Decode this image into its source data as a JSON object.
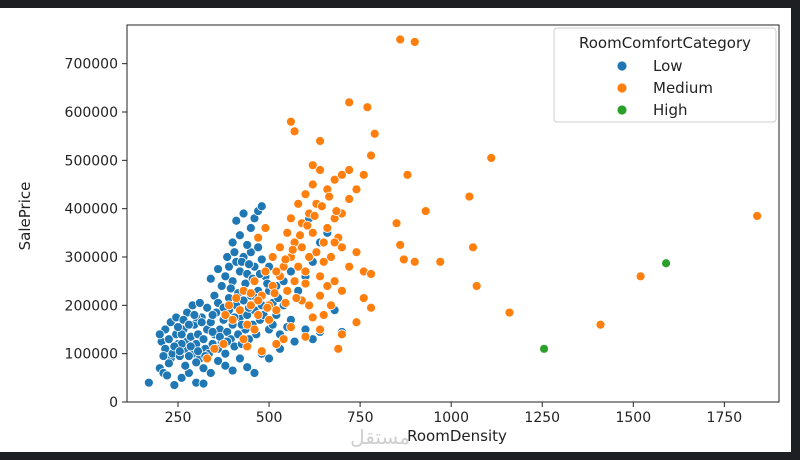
{
  "chart_data": {
    "type": "scatter",
    "title": "",
    "xlabel": "RoomDensity",
    "ylabel": "SalePrice",
    "xlim": [
      110,
      1900
    ],
    "ylim": [
      0,
      780000
    ],
    "xticks": [
      250,
      500,
      750,
      1000,
      1250,
      1500,
      1750
    ],
    "yticks": [
      0,
      100000,
      200000,
      300000,
      400000,
      500000,
      600000,
      700000
    ],
    "grid": false,
    "legend": {
      "title": "RoomComfortCategory",
      "placement": "top-right"
    },
    "series": [
      {
        "name": "Low",
        "color": "#1f77b4",
        "points": [
          [
            170,
            40000
          ],
          [
            200,
            70000
          ],
          [
            210,
            60000
          ],
          [
            220,
            55000
          ],
          [
            230,
            90000
          ],
          [
            240,
            35000
          ],
          [
            260,
            50000
          ],
          [
            280,
            60000
          ],
          [
            300,
            40000
          ],
          [
            320,
            38000
          ],
          [
            205,
            125000
          ],
          [
            215,
            110000
          ],
          [
            225,
            130000
          ],
          [
            235,
            100000
          ],
          [
            245,
            140000
          ],
          [
            250,
            120000
          ],
          [
            255,
            95000
          ],
          [
            265,
            150000
          ],
          [
            270,
            110000
          ],
          [
            275,
            125000
          ],
          [
            285,
            135000
          ],
          [
            290,
            100000
          ],
          [
            295,
            160000
          ],
          [
            300,
            120000
          ],
          [
            305,
            140000
          ],
          [
            310,
            90000
          ],
          [
            315,
            175000
          ],
          [
            320,
            130000
          ],
          [
            325,
            110000
          ],
          [
            330,
            150000
          ],
          [
            335,
            100000
          ],
          [
            340,
            165000
          ],
          [
            345,
            120000
          ],
          [
            350,
            140000
          ],
          [
            355,
            185000
          ],
          [
            360,
            110000
          ],
          [
            365,
            150000
          ],
          [
            370,
            125000
          ],
          [
            375,
            170000
          ],
          [
            380,
            100000
          ],
          [
            385,
            145000
          ],
          [
            390,
            190000
          ],
          [
            395,
            130000
          ],
          [
            400,
            160000
          ],
          [
            405,
            115000
          ],
          [
            410,
            200000
          ],
          [
            415,
            140000
          ],
          [
            420,
            175000
          ],
          [
            425,
            120000
          ],
          [
            430,
            210000
          ],
          [
            435,
            150000
          ],
          [
            440,
            180000
          ],
          [
            445,
            130000
          ],
          [
            450,
            220000
          ],
          [
            455,
            160000
          ],
          [
            460,
            190000
          ],
          [
            465,
            140000
          ],
          [
            470,
            230000
          ],
          [
            475,
            170000
          ],
          [
            480,
            200000
          ],
          [
            215,
            150000
          ],
          [
            230,
            165000
          ],
          [
            245,
            175000
          ],
          [
            260,
            140000
          ],
          [
            275,
            185000
          ],
          [
            290,
            200000
          ],
          [
            300,
            175000
          ],
          [
            310,
            205000
          ],
          [
            260,
            120000
          ],
          [
            280,
            95000
          ],
          [
            300,
            82000
          ],
          [
            320,
            70000
          ],
          [
            340,
            60000
          ],
          [
            360,
            85000
          ],
          [
            380,
            75000
          ],
          [
            400,
            65000
          ],
          [
            420,
            90000
          ],
          [
            440,
            72000
          ],
          [
            460,
            60000
          ],
          [
            480,
            100000
          ],
          [
            350,
            220000
          ],
          [
            370,
            240000
          ],
          [
            380,
            260000
          ],
          [
            390,
            280000
          ],
          [
            400,
            250000
          ],
          [
            410,
            290000
          ],
          [
            420,
            270000
          ],
          [
            430,
            300000
          ],
          [
            440,
            265000
          ],
          [
            450,
            310000
          ],
          [
            460,
            280000
          ],
          [
            470,
            320000
          ],
          [
            480,
            295000
          ],
          [
            490,
            260000
          ],
          [
            500,
            280000
          ],
          [
            340,
            255000
          ],
          [
            360,
            275000
          ],
          [
            400,
            330000
          ],
          [
            420,
            345000
          ],
          [
            440,
            325000
          ],
          [
            450,
            360000
          ],
          [
            460,
            380000
          ],
          [
            470,
            395000
          ],
          [
            480,
            405000
          ],
          [
            410,
            375000
          ],
          [
            430,
            390000
          ],
          [
            520,
            240000
          ],
          [
            540,
            250000
          ],
          [
            560,
            270000
          ],
          [
            580,
            230000
          ],
          [
            600,
            260000
          ],
          [
            620,
            290000
          ],
          [
            640,
            330000
          ],
          [
            660,
            350000
          ],
          [
            610,
            380000
          ],
          [
            600,
            150000
          ],
          [
            620,
            130000
          ],
          [
            640,
            145000
          ],
          [
            680,
            190000
          ],
          [
            700,
            145000
          ],
          [
            520,
            180000
          ],
          [
            540,
            200000
          ],
          [
            560,
            170000
          ],
          [
            500,
            150000
          ],
          [
            510,
            160000
          ],
          [
            530,
            140000
          ],
          [
            550,
            155000
          ],
          [
            570,
            125000
          ],
          [
            500,
            90000
          ],
          [
            530,
            110000
          ],
          [
            250,
            155000
          ],
          [
            265,
            170000
          ],
          [
            280,
            160000
          ],
          [
            295,
            180000
          ],
          [
            315,
            165000
          ],
          [
            330,
            195000
          ],
          [
            345,
            180000
          ],
          [
            360,
            205000
          ],
          [
            375,
            195000
          ],
          [
            390,
            215000
          ],
          [
            200,
            140000
          ],
          [
            210,
            95000
          ],
          [
            225,
            80000
          ],
          [
            240,
            115000
          ],
          [
            255,
            105000
          ],
          [
            270,
            75000
          ],
          [
            285,
            115000
          ],
          [
            305,
            105000
          ],
          [
            325,
            95000
          ],
          [
            345,
            145000
          ],
          [
            365,
            135000
          ],
          [
            385,
            125000
          ],
          [
            405,
            175000
          ],
          [
            425,
            160000
          ],
          [
            445,
            195000
          ],
          [
            465,
            215000
          ],
          [
            485,
            180000
          ],
          [
            500,
            230000
          ],
          [
            510,
            205000
          ],
          [
            525,
            215000
          ],
          [
            395,
            235000
          ],
          [
            415,
            225000
          ],
          [
            435,
            245000
          ],
          [
            455,
            255000
          ],
          [
            475,
            265000
          ],
          [
            495,
            245000
          ],
          [
            385,
            300000
          ],
          [
            405,
            310000
          ],
          [
            425,
            290000
          ],
          [
            445,
            285000
          ]
        ]
      },
      {
        "name": "Medium",
        "color": "#ff7f0e",
        "points": [
          [
            330,
            90000
          ],
          [
            350,
            110000
          ],
          [
            375,
            120000
          ],
          [
            380,
            180000
          ],
          [
            390,
            200000
          ],
          [
            400,
            170000
          ],
          [
            410,
            215000
          ],
          [
            420,
            190000
          ],
          [
            430,
            230000
          ],
          [
            440,
            160000
          ],
          [
            450,
            200000
          ],
          [
            460,
            250000
          ],
          [
            470,
            180000
          ],
          [
            480,
            220000
          ],
          [
            490,
            270000
          ],
          [
            500,
            200000
          ],
          [
            510,
            240000
          ],
          [
            520,
            190000
          ],
          [
            530,
            260000
          ],
          [
            540,
            280000
          ],
          [
            550,
            230000
          ],
          [
            560,
            300000
          ],
          [
            570,
            250000
          ],
          [
            580,
            280000
          ],
          [
            590,
            320000
          ],
          [
            600,
            270000
          ],
          [
            610,
            300000
          ],
          [
            620,
            350000
          ],
          [
            630,
            310000
          ],
          [
            640,
            260000
          ],
          [
            650,
            330000
          ],
          [
            660,
            360000
          ],
          [
            670,
            300000
          ],
          [
            680,
            380000
          ],
          [
            690,
            340000
          ],
          [
            700,
            390000
          ],
          [
            720,
            420000
          ],
          [
            740,
            440000
          ],
          [
            760,
            470000
          ],
          [
            780,
            510000
          ],
          [
            470,
            340000
          ],
          [
            490,
            360000
          ],
          [
            510,
            300000
          ],
          [
            530,
            320000
          ],
          [
            550,
            350000
          ],
          [
            570,
            330000
          ],
          [
            590,
            370000
          ],
          [
            610,
            390000
          ],
          [
            630,
            410000
          ],
          [
            660,
            440000
          ],
          [
            680,
            460000
          ],
          [
            700,
            470000
          ],
          [
            720,
            480000
          ],
          [
            740,
            440000
          ],
          [
            560,
            380000
          ],
          [
            580,
            410000
          ],
          [
            600,
            430000
          ],
          [
            620,
            450000
          ],
          [
            640,
            480000
          ],
          [
            560,
            580000
          ],
          [
            570,
            560000
          ],
          [
            620,
            490000
          ],
          [
            640,
            540000
          ],
          [
            720,
            620000
          ],
          [
            770,
            610000
          ],
          [
            790,
            555000
          ],
          [
            850,
            370000
          ],
          [
            860,
            325000
          ],
          [
            870,
            295000
          ],
          [
            880,
            470000
          ],
          [
            900,
            290000
          ],
          [
            930,
            395000
          ],
          [
            860,
            750000
          ],
          [
            900,
            745000
          ],
          [
            970,
            290000
          ],
          [
            1050,
            425000
          ],
          [
            1060,
            320000
          ],
          [
            1070,
            240000
          ],
          [
            1110,
            505000
          ],
          [
            1160,
            185000
          ],
          [
            1410,
            160000
          ],
          [
            1520,
            260000
          ],
          [
            1840,
            385000
          ],
          [
            760,
            270000
          ],
          [
            780,
            265000
          ],
          [
            760,
            215000
          ],
          [
            780,
            195000
          ],
          [
            740,
            165000
          ],
          [
            700,
            140000
          ],
          [
            690,
            110000
          ],
          [
            640,
            220000
          ],
          [
            660,
            240000
          ],
          [
            680,
            250000
          ],
          [
            620,
            175000
          ],
          [
            640,
            150000
          ],
          [
            600,
            135000
          ],
          [
            560,
            155000
          ],
          [
            540,
            130000
          ],
          [
            520,
            120000
          ],
          [
            480,
            105000
          ],
          [
            440,
            115000
          ],
          [
            430,
            130000
          ],
          [
            460,
            150000
          ],
          [
            500,
            170000
          ],
          [
            590,
            210000
          ],
          [
            610,
            200000
          ],
          [
            650,
            180000
          ],
          [
            670,
            200000
          ],
          [
            700,
            230000
          ],
          [
            720,
            280000
          ],
          [
            740,
            310000
          ],
          [
            700,
            320000
          ],
          [
            680,
            330000
          ],
          [
            650,
            290000
          ],
          [
            600,
            245000
          ],
          [
            575,
            215000
          ],
          [
            545,
            205000
          ],
          [
            515,
            225000
          ],
          [
            495,
            195000
          ],
          [
            470,
            210000
          ],
          [
            450,
            225000
          ],
          [
            520,
            270000
          ],
          [
            545,
            295000
          ],
          [
            565,
            315000
          ],
          [
            585,
            345000
          ],
          [
            605,
            365000
          ],
          [
            625,
            385000
          ],
          [
            645,
            405000
          ],
          [
            665,
            425000
          ],
          [
            685,
            395000
          ]
        ]
      },
      {
        "name": "High",
        "color": "#2ca02c",
        "points": [
          [
            1255,
            110000
          ],
          [
            1590,
            287000
          ]
        ]
      }
    ]
  }
}
